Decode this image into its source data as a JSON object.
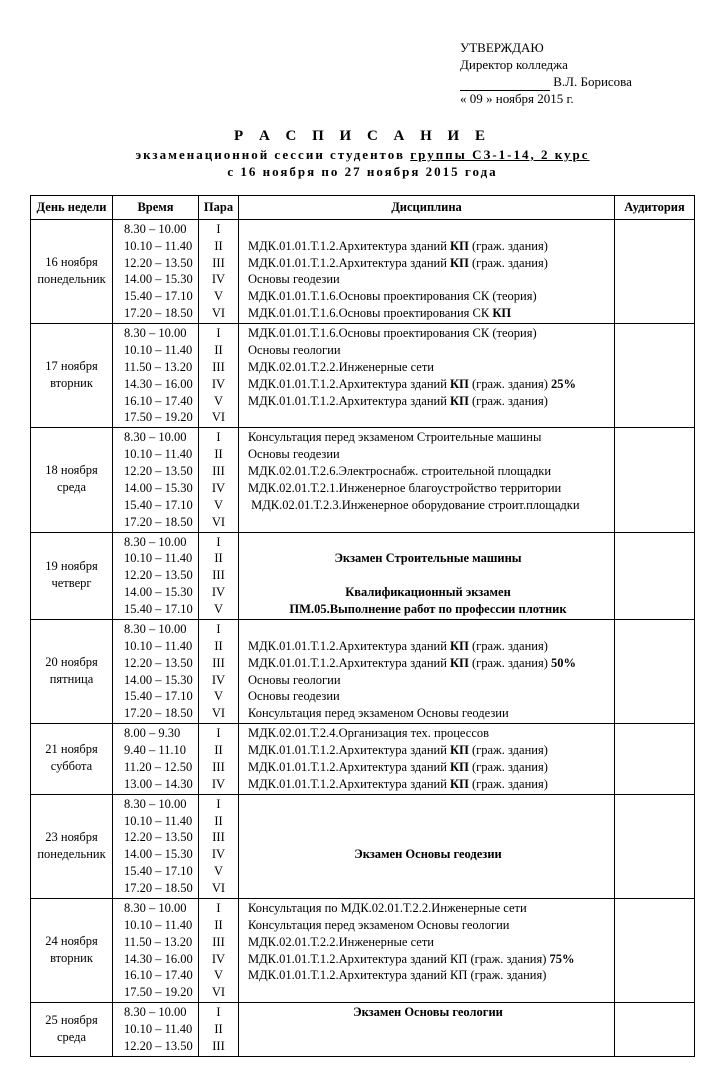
{
  "approve": {
    "l1": "УТВЕРЖДАЮ",
    "l2": "Директор колледжа",
    "name": "В.Л. Борисова",
    "date": "« 09 »  ноября  2015 г."
  },
  "title": {
    "big": "Р А С П И С А Н И Е",
    "sub_before": "экзаменационной сессии студентов ",
    "sub_u": "группы СЗ-1-14, 2 курс",
    "dates": "с 16 ноября по 27 ноября 2015 года"
  },
  "thead": [
    "День недели",
    "Время",
    "Пара",
    "Дисциплина",
    "Аудитория"
  ],
  "rows": [
    {
      "day": [
        "16 ноября",
        "понедельник"
      ],
      "times": [
        "8.30 – 10.00",
        "10.10 – 11.40",
        "12.20 – 13.50",
        "14.00 – 15.30",
        "15.40 – 17.10",
        "17.20 – 18.50"
      ],
      "pairs": [
        "I",
        "II",
        "III",
        "IV",
        "V",
        "VI"
      ],
      "disc": [
        "",
        "МДК.01.01.Т.1.2.Архитектура зданий <b>КП</b> (граж. здания)",
        "МДК.01.01.Т.1.2.Архитектура зданий <b>КП</b> (граж. здания)",
        "Основы геодезии",
        "МДК.01.01.Т.1.6.Основы проектирования СК (теория)",
        "МДК.01.01.Т.1.6.Основы проектирования СК <b>КП</b>"
      ]
    },
    {
      "day": [
        "17 ноября",
        "вторник"
      ],
      "times": [
        "8.30 – 10.00",
        "10.10 – 11.40",
        "11.50 – 13.20",
        "14.30 – 16.00",
        "16.10 – 17.40",
        "17.50 – 19.20"
      ],
      "pairs": [
        "I",
        "II",
        "III",
        "IV",
        "V",
        "VI"
      ],
      "disc": [
        "МДК.01.01.Т.1.6.Основы проектирования СК (теория)",
        "Основы геологии",
        "МДК.02.01.Т.2.2.Инженерные сети",
        "МДК.01.01.Т.1.2.Архитектура зданий <b>КП</b> (граж. здания) <b>25%</b>",
        "МДК.01.01.Т.1.2.Архитектура зданий <b>КП</b> (граж. здания)",
        ""
      ]
    },
    {
      "day": [
        "18 ноября",
        "среда"
      ],
      "times": [
        "8.30 – 10.00",
        "10.10 – 11.40",
        "12.20 – 13.50",
        "14.00 – 15.30",
        "15.40 – 17.10",
        "17.20 – 18.50"
      ],
      "pairs": [
        "I",
        "II",
        "III",
        "IV",
        "V",
        "VI"
      ],
      "disc": [
        "Консультация перед экзаменом Строительные машины",
        "Основы геодезии",
        "МДК.02.01.Т.2.6.Электроснабж. строительной площадки",
        "МДК.02.01.Т.2.1.Инженерное благоустройство территории",
        "&nbsp;МДК.02.01.Т.2.3.Инженерное оборудование строит.площадки",
        ""
      ]
    },
    {
      "day": [
        "19 ноября",
        "четверг"
      ],
      "times": [
        "8.30 – 10.00",
        "10.10 – 11.40",
        "12.20 – 13.50",
        "14.00 – 15.30",
        "15.40 – 17.10"
      ],
      "pairs": [
        "I",
        "II",
        "III",
        "IV",
        "V"
      ],
      "disc_special": [
        {
          "text": "",
          "class": ""
        },
        {
          "text": "Экзамен Строительные машины",
          "class": "center bold"
        },
        {
          "text": "",
          "class": ""
        },
        {
          "text": "Квалификационный экзамен",
          "class": "center bold"
        },
        {
          "text": "ПМ.05.Выполнение работ по профессии плотник",
          "class": "center bold"
        }
      ]
    },
    {
      "day": [
        "20 ноября",
        "пятница"
      ],
      "times": [
        "8.30 – 10.00",
        "10.10 – 11.40",
        "12.20 – 13.50",
        "14.00 – 15.30",
        "15.40 – 17.10",
        "17.20 – 18.50"
      ],
      "pairs": [
        "I",
        "II",
        "III",
        "IV",
        "V",
        "VI"
      ],
      "disc": [
        "",
        "МДК.01.01.Т.1.2.Архитектура зданий <b>КП</b> (граж. здания)",
        "МДК.01.01.Т.1.2.Архитектура зданий <b>КП</b> (граж. здания) <b>50%</b>",
        "Основы геологии",
        "Основы геодезии",
        "Консультация перед экзаменом Основы геодезии"
      ]
    },
    {
      "day": [
        "21 ноября",
        "суббота"
      ],
      "times": [
        "8.00 – 9.30",
        "9.40 – 11.10",
        "11.20 – 12.50",
        "13.00 – 14.30"
      ],
      "pairs": [
        "I",
        "II",
        "III",
        "IV"
      ],
      "disc": [
        "МДК.02.01.Т.2.4.Организация тех. процессов",
        "МДК.01.01.Т.1.2.Архитектура зданий <b>КП</b> (граж. здания)",
        "МДК.01.01.Т.1.2.Архитектура зданий <b>КП</b> (граж. здания)",
        "МДК.01.01.Т.1.2.Архитектура зданий <b>КП</b> (граж. здания)"
      ]
    },
    {
      "day": [
        "23 ноября",
        "понедельник"
      ],
      "times": [
        "8.30 – 10.00",
        "10.10 – 11.40",
        "12.20 – 13.50",
        "14.00 – 15.30",
        "15.40 – 17.10",
        "17.20 – 18.50"
      ],
      "pairs": [
        "I",
        "II",
        "III",
        "IV",
        "V",
        "VI"
      ],
      "disc_special": [
        {
          "text": "",
          "class": ""
        },
        {
          "text": "",
          "class": ""
        },
        {
          "text": "",
          "class": ""
        },
        {
          "text": "Экзамен Основы геодезии",
          "class": "center bold"
        },
        {
          "text": "",
          "class": ""
        },
        {
          "text": "",
          "class": ""
        }
      ]
    },
    {
      "day": [
        "24 ноября",
        "вторник"
      ],
      "times": [
        "8.30 – 10.00",
        "10.10 – 11.40",
        "11.50 – 13.20",
        "14.30 – 16.00",
        "16.10 – 17.40",
        "17.50 – 19.20"
      ],
      "pairs": [
        "I",
        "II",
        "III",
        "IV",
        "V",
        "VI"
      ],
      "disc": [
        "Консультация по МДК.02.01.Т.2.2.Инженерные сети",
        "Консультация перед экзаменом Основы геологии",
        "МДК.02.01.Т.2.2.Инженерные сети",
        "МДК.01.01.Т.1.2.Архитектура зданий КП (граж. здания) <b>75%</b>",
        "МДК.01.01.Т.1.2.Архитектура зданий КП (граж. здания)",
        ""
      ]
    },
    {
      "day": [
        "25 ноября",
        "среда"
      ],
      "times": [
        "8.30 – 10.00",
        "10.10 – 11.40",
        "12.20 – 13.50"
      ],
      "pairs": [
        "I",
        "II",
        "III"
      ],
      "disc_special": [
        {
          "text": "Экзамен Основы геологии",
          "class": "center bold"
        },
        {
          "text": "",
          "class": ""
        },
        {
          "text": "",
          "class": ""
        }
      ]
    }
  ]
}
